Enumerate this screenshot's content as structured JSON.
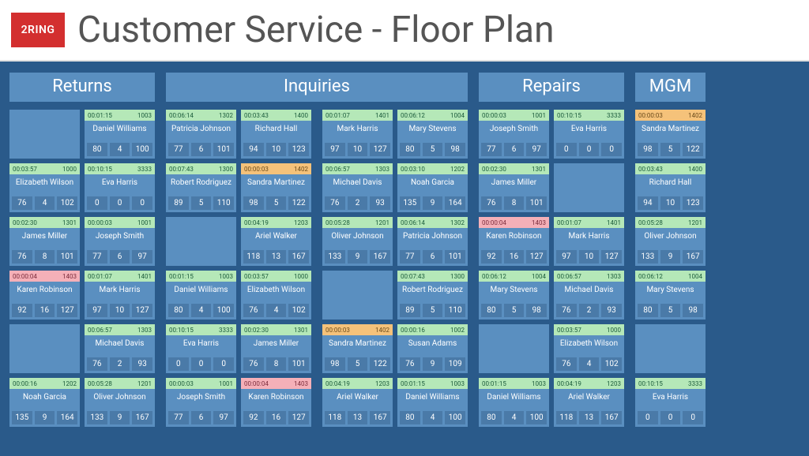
{
  "brand": "2RING",
  "title": "Customer Service - Floor Plan",
  "colors": {
    "background": "#2a5a8a",
    "section_header_bg": "#5a8fc0",
    "cell_bg": "#5a8fc0",
    "stat_bg": "#4a7aa8",
    "logo_bg": "#d32f2f",
    "status": {
      "green": "#b5e8b8",
      "orange": "#f5c27a",
      "pink": "#f5b0b8"
    }
  },
  "sections": [
    {
      "label": "Returns",
      "cols": 2,
      "cells": [
        null,
        {
          "time": "00:01:15",
          "id": "1003",
          "name": "Daniel Williams",
          "stats": [
            80,
            4,
            100
          ],
          "status": "green"
        },
        {
          "time": "00:03:57",
          "id": "1000",
          "name": "Elizabeth Wilson",
          "stats": [
            76,
            4,
            102
          ],
          "status": "green"
        },
        {
          "time": "00:10:15",
          "id": "3333",
          "name": "Eva Harris",
          "stats": [
            0,
            0,
            0
          ],
          "status": "green"
        },
        {
          "time": "00:02:30",
          "id": "1301",
          "name": "James Miller",
          "stats": [
            76,
            8,
            101
          ],
          "status": "green"
        },
        {
          "time": "00:00:03",
          "id": "1001",
          "name": "Joseph Smith",
          "stats": [
            77,
            6,
            97
          ],
          "status": "green"
        },
        {
          "time": "00:00:04",
          "id": "1403",
          "name": "Karen Robinson",
          "stats": [
            92,
            16,
            127
          ],
          "status": "pink"
        },
        {
          "time": "00:01:07",
          "id": "1401",
          "name": "Mark Harris",
          "stats": [
            97,
            10,
            127
          ],
          "status": "green"
        },
        null,
        {
          "time": "00:06:57",
          "id": "1303",
          "name": "Michael Davis",
          "stats": [
            76,
            2,
            93
          ],
          "status": "green"
        },
        {
          "time": "00:00:16",
          "id": "1202",
          "name": "Noah Garcia",
          "stats": [
            135,
            9,
            164
          ],
          "status": "green"
        },
        {
          "time": "00:05:28",
          "id": "1201",
          "name": "Oliver Johnson",
          "stats": [
            133,
            9,
            167
          ],
          "status": "green"
        }
      ]
    },
    {
      "label": "Inquiries",
      "cols": 2,
      "groups": [
        [
          {
            "time": "00:06:14",
            "id": "1302",
            "name": "Patricia Johnson",
            "stats": [
              77,
              6,
              101
            ],
            "status": "green"
          },
          {
            "time": "00:03:43",
            "id": "1400",
            "name": "Richard Hall",
            "stats": [
              94,
              10,
              123
            ],
            "status": "green"
          },
          {
            "time": "00:07:43",
            "id": "1300",
            "name": "Robert Rodriguez",
            "stats": [
              89,
              5,
              110
            ],
            "status": "green"
          },
          {
            "time": "00:00:03",
            "id": "1402",
            "name": "Sandra Martinez",
            "stats": [
              98,
              5,
              122
            ],
            "status": "orange"
          },
          null,
          {
            "time": "00:04:19",
            "id": "1203",
            "name": "Ariel Walker",
            "stats": [
              118,
              13,
              167
            ],
            "status": "green"
          },
          {
            "time": "00:01:15",
            "id": "1003",
            "name": "Daniel Williams",
            "stats": [
              80,
              4,
              100
            ],
            "status": "green"
          },
          {
            "time": "00:03:57",
            "id": "1000",
            "name": "Elizabeth Wilson",
            "stats": [
              76,
              4,
              102
            ],
            "status": "green"
          },
          {
            "time": "00:10:15",
            "id": "3333",
            "name": "Eva Harris",
            "stats": [
              0,
              0,
              0
            ],
            "status": "green"
          },
          {
            "time": "00:02:30",
            "id": "1301",
            "name": "James Miller",
            "stats": [
              76,
              8,
              101
            ],
            "status": "green"
          },
          {
            "time": "00:00:03",
            "id": "1001",
            "name": "Joseph Smith",
            "stats": [
              77,
              6,
              97
            ],
            "status": "green"
          },
          {
            "time": "00:00:04",
            "id": "1403",
            "name": "Karen Robinson",
            "stats": [
              92,
              16,
              127
            ],
            "status": "pink"
          }
        ],
        [
          {
            "time": "00:01:07",
            "id": "1401",
            "name": "Mark Harris",
            "stats": [
              97,
              10,
              127
            ],
            "status": "green"
          },
          {
            "time": "00:06:12",
            "id": "1004",
            "name": "Mary Stevens",
            "stats": [
              80,
              5,
              98
            ],
            "status": "green"
          },
          {
            "time": "00:06:57",
            "id": "1303",
            "name": "Michael Davis",
            "stats": [
              76,
              2,
              93
            ],
            "status": "green"
          },
          {
            "time": "00:03:10",
            "id": "1202",
            "name": "Noah Garcia",
            "stats": [
              135,
              9,
              164
            ],
            "status": "green"
          },
          {
            "time": "00:05:28",
            "id": "1201",
            "name": "Oliver Johnson",
            "stats": [
              133,
              9,
              167
            ],
            "status": "green"
          },
          {
            "time": "00:06:14",
            "id": "1302",
            "name": "Patricia Johnson",
            "stats": [
              77,
              6,
              101
            ],
            "status": "green"
          },
          null,
          {
            "time": "00:07:43",
            "id": "1300",
            "name": "Robert Rodriguez",
            "stats": [
              89,
              5,
              110
            ],
            "status": "green"
          },
          {
            "time": "00:00:03",
            "id": "1402",
            "name": "Sandra Martinez",
            "stats": [
              98,
              5,
              122
            ],
            "status": "orange"
          },
          {
            "time": "00:00:16",
            "id": "1002",
            "name": "Susan Adams",
            "stats": [
              76,
              9,
              109
            ],
            "status": "green"
          },
          {
            "time": "00:04:19",
            "id": "1203",
            "name": "Ariel Walker",
            "stats": [
              118,
              13,
              167
            ],
            "status": "green"
          },
          {
            "time": "00:01:15",
            "id": "1003",
            "name": "Daniel Williams",
            "stats": [
              80,
              4,
              100
            ],
            "status": "green"
          }
        ]
      ]
    },
    {
      "label": "Repairs",
      "cols": 2,
      "cells": [
        {
          "time": "00:00:03",
          "id": "1001",
          "name": "Joseph Smith",
          "stats": [
            77,
            6,
            97
          ],
          "status": "green"
        },
        {
          "time": "00:10:15",
          "id": "3333",
          "name": "Eva Harris",
          "stats": [
            0,
            0,
            0
          ],
          "status": "green"
        },
        {
          "time": "00:02:30",
          "id": "1301",
          "name": "James Miller",
          "stats": [
            76,
            8,
            101
          ],
          "status": "green"
        },
        null,
        {
          "time": "00:00:04",
          "id": "1403",
          "name": "Karen Robinson",
          "stats": [
            92,
            16,
            127
          ],
          "status": "pink"
        },
        {
          "time": "00:01:07",
          "id": "1401",
          "name": "Mark Harris",
          "stats": [
            97,
            10,
            127
          ],
          "status": "green"
        },
        {
          "time": "00:06:12",
          "id": "1004",
          "name": "Mary Stevens",
          "stats": [
            80,
            5,
            98
          ],
          "status": "green"
        },
        {
          "time": "00:06:57",
          "id": "1303",
          "name": "Michael Davis",
          "stats": [
            76,
            2,
            93
          ],
          "status": "green"
        },
        null,
        {
          "time": "00:03:57",
          "id": "1000",
          "name": "Elizabeth Wilson",
          "stats": [
            76,
            4,
            102
          ],
          "status": "green"
        },
        {
          "time": "00:01:15",
          "id": "1003",
          "name": "Daniel Williams",
          "stats": [
            80,
            4,
            100
          ],
          "status": "green"
        },
        {
          "time": "00:04:19",
          "id": "1203",
          "name": "Ariel Walker",
          "stats": [
            118,
            13,
            167
          ],
          "status": "green"
        }
      ]
    },
    {
      "label": "MGM",
      "cols": 1,
      "cells": [
        {
          "time": "00:00:03",
          "id": "1402",
          "name": "Sandra Martinez",
          "stats": [
            98,
            5,
            122
          ],
          "status": "orange"
        },
        {
          "time": "00:03:43",
          "id": "1400",
          "name": "Richard Hall",
          "stats": [
            94,
            10,
            123
          ],
          "status": "green"
        },
        {
          "time": "00:05:28",
          "id": "1201",
          "name": "Oliver Johnson",
          "stats": [
            133,
            9,
            167
          ],
          "status": "green"
        },
        {
          "time": "00:06:12",
          "id": "1004",
          "name": "Mary Stevens",
          "stats": [
            80,
            5,
            98
          ],
          "status": "green"
        },
        null,
        {
          "time": "00:10:15",
          "id": "3333",
          "name": "Eva Harris",
          "stats": [
            0,
            0,
            0
          ],
          "status": "green"
        }
      ]
    }
  ]
}
